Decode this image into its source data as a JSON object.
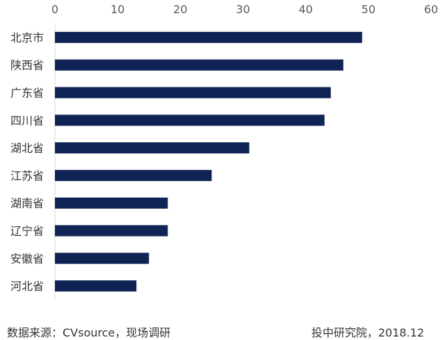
{
  "chart_data": {
    "type": "bar",
    "orientation": "horizontal",
    "categories": [
      "北京市",
      "陕西省",
      "广东省",
      "四川省",
      "湖北省",
      "江苏省",
      "湖南省",
      "辽宁省",
      "安徽省",
      "河北省"
    ],
    "values": [
      49,
      46,
      44,
      43,
      31,
      25,
      18,
      18,
      15,
      13
    ],
    "xlim": [
      0,
      60
    ],
    "x_ticks": [
      "0",
      "10",
      "20",
      "30",
      "40",
      "50",
      "60"
    ],
    "x_axis_position": "top",
    "grid": false,
    "legend": "none",
    "bar_color": "#0f2454",
    "title": "",
    "xlabel": "",
    "ylabel": ""
  },
  "footer": {
    "source": "数据来源：CVsource，现场调研",
    "credit": "投中研究院，2018.12"
  }
}
